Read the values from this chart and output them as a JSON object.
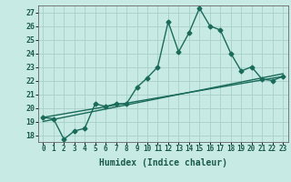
{
  "title": "",
  "xlabel": "Humidex (Indice chaleur)",
  "xlim": [
    -0.5,
    23.5
  ],
  "ylim": [
    17.5,
    27.5
  ],
  "xtick_values": [
    0,
    1,
    2,
    3,
    4,
    5,
    6,
    7,
    8,
    9,
    10,
    11,
    12,
    13,
    14,
    15,
    16,
    17,
    18,
    19,
    20,
    21,
    22,
    23
  ],
  "xtick_labels": [
    "0",
    "1",
    "2",
    "3",
    "4",
    "5",
    "6",
    "7",
    "8",
    "9",
    "10",
    "11",
    "12",
    "13",
    "14",
    "15",
    "16",
    "17",
    "18",
    "19",
    "20",
    "21",
    "22",
    "23"
  ],
  "ytick_values": [
    18,
    19,
    20,
    21,
    22,
    23,
    24,
    25,
    26,
    27
  ],
  "ytick_labels": [
    "18",
    "19",
    "20",
    "21",
    "22",
    "23",
    "24",
    "25",
    "26",
    "27"
  ],
  "background_color": "#c8eae4",
  "grid_color": "#a8cfc9",
  "line_color": "#1a6b5a",
  "line1_x": [
    0,
    1,
    2,
    3,
    4,
    5,
    6,
    7,
    8,
    9,
    10,
    11,
    12,
    13,
    14,
    15,
    16,
    17,
    18,
    19,
    20,
    21,
    22,
    23
  ],
  "line1_y": [
    19.3,
    19.2,
    17.7,
    18.3,
    18.5,
    20.3,
    20.1,
    20.3,
    20.3,
    21.5,
    22.2,
    23.0,
    26.3,
    24.1,
    25.5,
    27.3,
    26.0,
    25.7,
    24.0,
    22.7,
    23.0,
    22.1,
    22.0,
    22.3
  ],
  "line2_x": [
    0,
    23
  ],
  "line2_y": [
    19.3,
    22.3
  ],
  "line3_x": [
    0,
    23
  ],
  "line3_y": [
    19.0,
    22.5
  ],
  "marker_size": 2.5,
  "line_width": 1.0,
  "xlabel_fontsize": 7,
  "tick_fontsize": 5.5,
  "ytick_fontsize": 6.0
}
